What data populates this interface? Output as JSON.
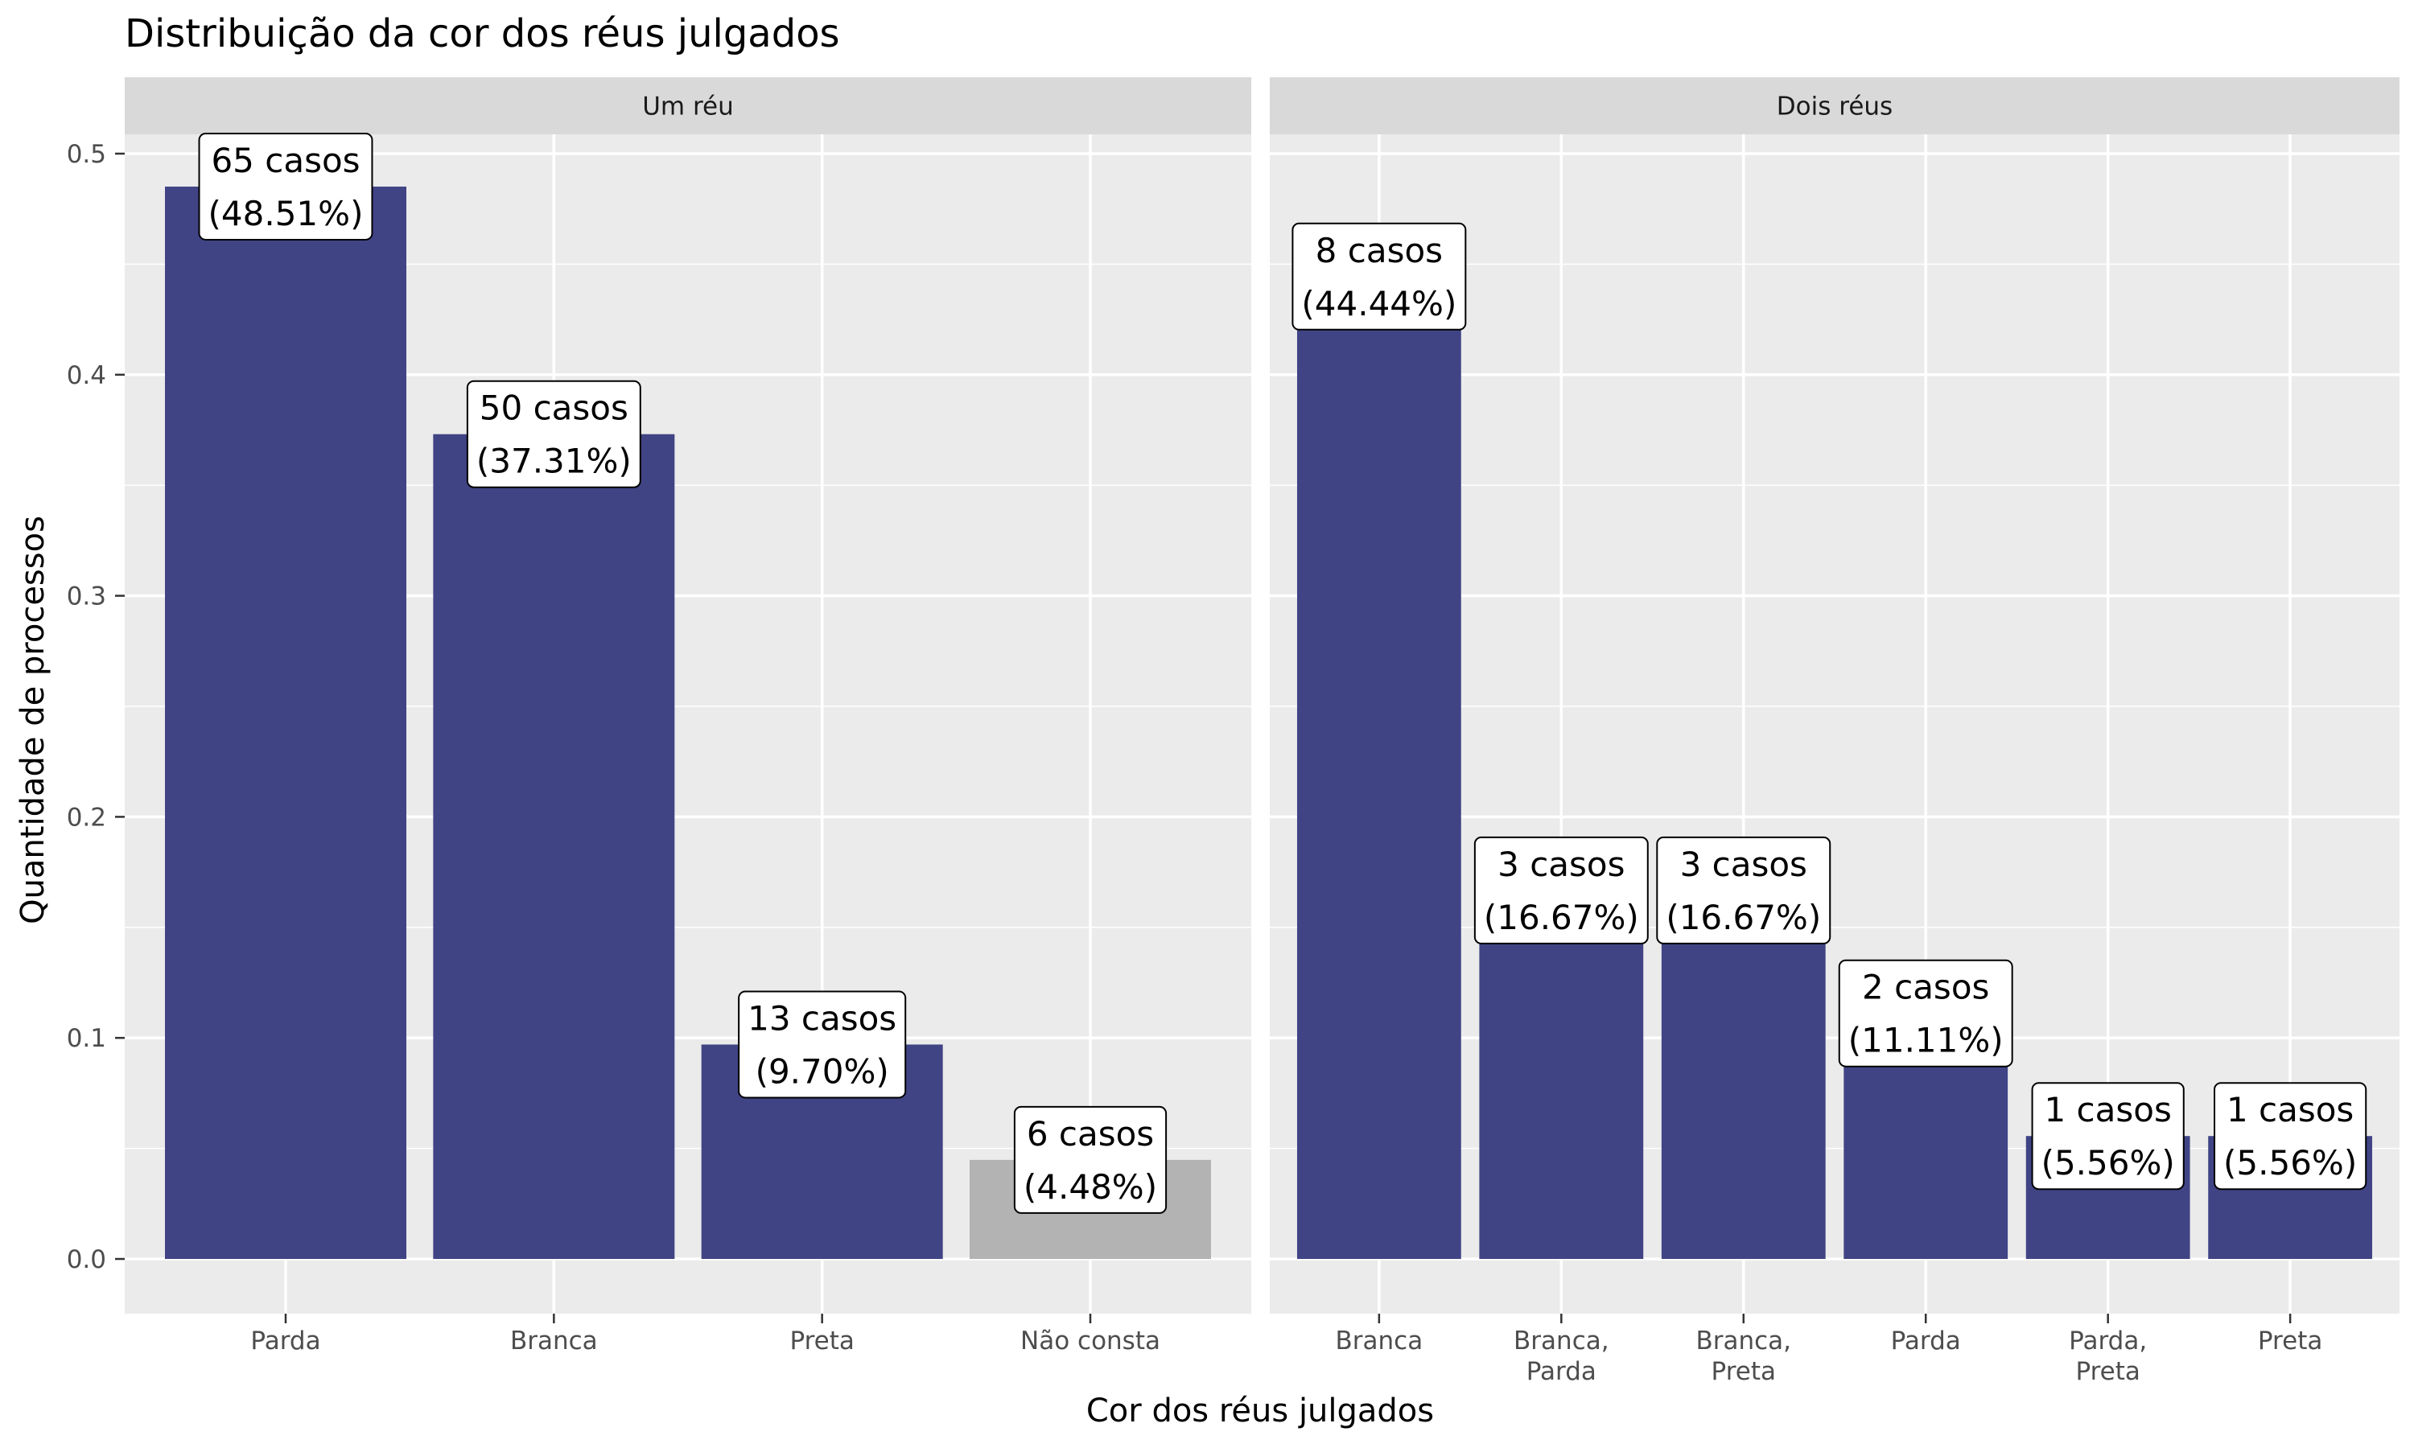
{
  "chart_data": {
    "type": "bar",
    "title": "Distribuição da cor dos réus julgados",
    "xlabel": "Cor dos réus julgados",
    "ylabel": "Quantidade de processos",
    "ylim": [
      -0.05,
      0.52
    ],
    "y_ticks": [
      0.0,
      0.1,
      0.2,
      0.3,
      0.4,
      0.5
    ],
    "y_tick_labels": [
      "0.0",
      "0.1",
      "0.2",
      "0.3",
      "0.4",
      "0.5"
    ],
    "grid": true,
    "colors": {
      "bar": "#404485",
      "bar_missing": "#b3b3b3",
      "panel": "#ebebeb",
      "strip": "#d9d9d9",
      "grid": "#ffffff"
    },
    "facets": [
      {
        "name": "Um réu",
        "categories": [
          "Parda",
          "Branca",
          "Preta",
          "Não consta"
        ],
        "values": [
          0.4851,
          0.3731,
          0.097,
          0.0448
        ],
        "counts": [
          65,
          50,
          13,
          6
        ],
        "label_line1": [
          "65 casos",
          "50 casos",
          "13 casos",
          "6 casos"
        ],
        "label_line2": [
          "(48.51%)",
          "(37.31%)",
          "(9.70%)",
          "(4.48%)"
        ],
        "missing": [
          false,
          false,
          false,
          true
        ]
      },
      {
        "name": "Dois réus",
        "categories": [
          "Branca",
          "Branca,\nParda",
          "Branca,\nPreta",
          "Parda",
          "Parda,\nPreta",
          "Preta"
        ],
        "values": [
          0.4444,
          0.1667,
          0.1667,
          0.1111,
          0.0556,
          0.0556
        ],
        "counts": [
          8,
          3,
          3,
          2,
          1,
          1
        ],
        "label_line1": [
          "8 casos",
          "3 casos",
          "3 casos",
          "2 casos",
          "1 casos",
          "1 casos"
        ],
        "label_line2": [
          "(44.44%)",
          "(16.67%)",
          "(16.67%)",
          "(11.11%)",
          "(5.56%)",
          "(5.56%)"
        ],
        "missing": [
          false,
          false,
          false,
          false,
          false,
          false
        ]
      }
    ]
  }
}
